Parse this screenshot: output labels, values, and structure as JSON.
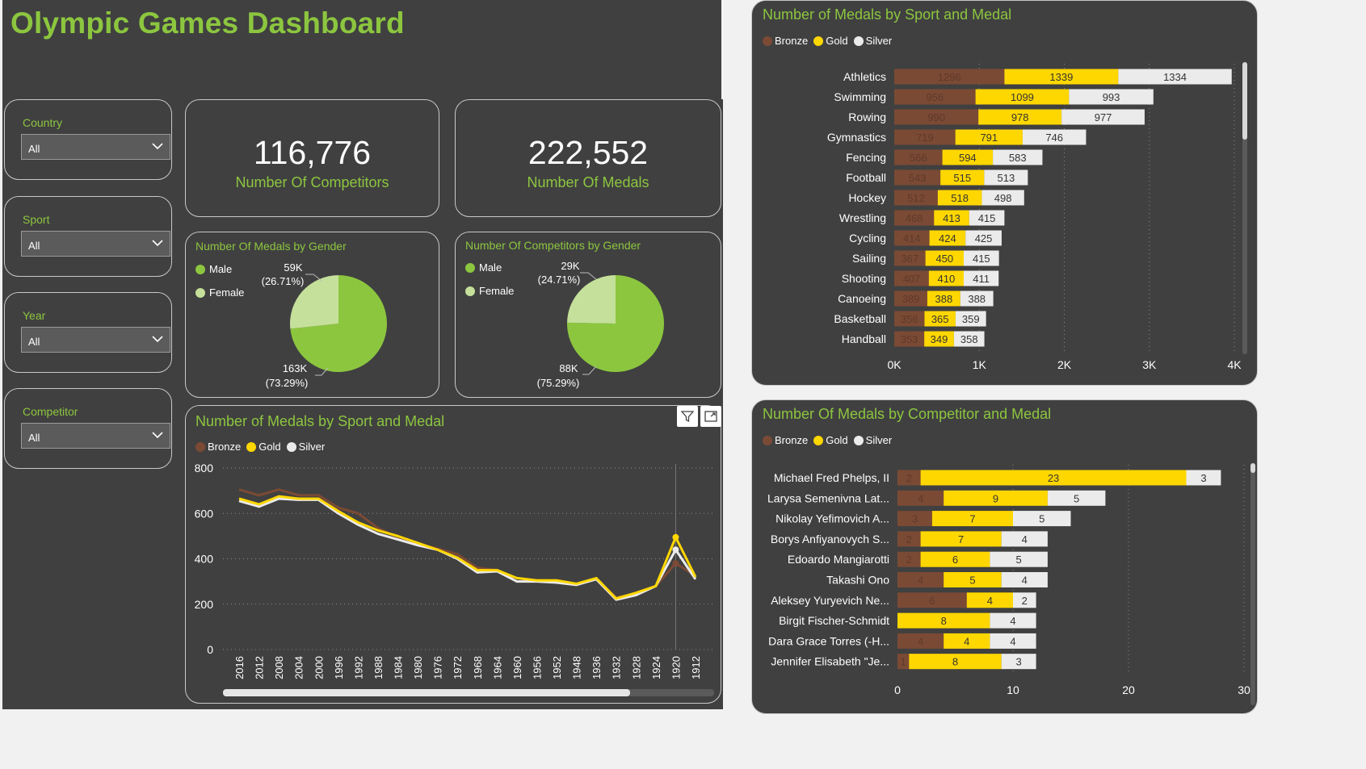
{
  "dashboard": {
    "title": "Olympic Games Dashboard"
  },
  "slicers": [
    {
      "label": "Country",
      "value": "All"
    },
    {
      "label": "Sport",
      "value": "All"
    },
    {
      "label": "Year",
      "value": "All"
    },
    {
      "label": "Competitor",
      "value": "All"
    }
  ],
  "kpis": {
    "competitors": {
      "value": "116,776",
      "label": "Number Of Competitors"
    },
    "medals": {
      "value": "222,552",
      "label": "Number Of Medals"
    }
  },
  "colors": {
    "bronze": "#7b4a34",
    "gold": "#ffd700",
    "silver": "#ebebeb",
    "male": "#8cc63f",
    "female": "#c5e09a",
    "accent": "#8cc63f",
    "panel": "#404040"
  },
  "legend_medals": [
    "Bronze",
    "Gold",
    "Silver"
  ],
  "pie_medals": {
    "title": "Number Of Medals by Gender",
    "legend": [
      "Male",
      "Female"
    ],
    "female": {
      "value": "59K",
      "pct": "(26.71%)",
      "share": 26.71
    },
    "male": {
      "value": "163K",
      "pct": "(73.29%)",
      "share": 73.29
    }
  },
  "pie_competitors": {
    "title": "Number Of Competitors by Gender",
    "legend": [
      "Male",
      "Female"
    ],
    "female": {
      "value": "29K",
      "pct": "(24.71%)",
      "share": 24.71
    },
    "male": {
      "value": "88K",
      "pct": "(75.29%)",
      "share": 75.29
    }
  },
  "chart_data": [
    {
      "type": "bar",
      "title": "Number of Medals by Sport and Medal",
      "stacked": true,
      "orientation": "horizontal",
      "categories": [
        "Athletics",
        "Swimming",
        "Rowing",
        "Gymnastics",
        "Fencing",
        "Football",
        "Hockey",
        "Wrestling",
        "Cycling",
        "Sailing",
        "Shooting",
        "Canoeing",
        "Basketball",
        "Handball"
      ],
      "series": [
        {
          "name": "Bronze",
          "values": [
            1296,
            956,
            990,
            719,
            566,
            543,
            512,
            468,
            414,
            367,
            407,
            389,
            356,
            353
          ]
        },
        {
          "name": "Gold",
          "values": [
            1339,
            1099,
            978,
            791,
            594,
            515,
            518,
            413,
            424,
            450,
            410,
            388,
            365,
            349
          ]
        },
        {
          "name": "Silver",
          "values": [
            1334,
            993,
            977,
            746,
            583,
            513,
            498,
            415,
            425,
            415,
            411,
            388,
            359,
            358
          ]
        }
      ],
      "xlim": [
        0,
        4000
      ],
      "xticks": [
        "0K",
        "1K",
        "2K",
        "3K",
        "4K"
      ],
      "legend": "top-left"
    },
    {
      "type": "bar",
      "title": "Number Of Medals by Competitor and Medal",
      "stacked": true,
      "orientation": "horizontal",
      "categories": [
        "Michael Fred Phelps, II",
        "Larysa Semenivna Lat...",
        "Nikolay Yefimovich A...",
        "Borys Anfiyanovych S...",
        "Edoardo Mangiarotti",
        "Takashi Ono",
        "Aleksey Yuryevich Ne...",
        "Birgit Fischer-Schmidt",
        "Dara Grace Torres (-H...",
        "Jennifer Elisabeth \"Je..."
      ],
      "series": [
        {
          "name": "Bronze",
          "values": [
            2,
            4,
            3,
            2,
            2,
            4,
            6,
            0,
            4,
            1
          ]
        },
        {
          "name": "Gold",
          "values": [
            23,
            9,
            7,
            7,
            6,
            5,
            4,
            8,
            4,
            8
          ]
        },
        {
          "name": "Silver",
          "values": [
            3,
            5,
            5,
            4,
            5,
            4,
            2,
            4,
            4,
            3
          ]
        }
      ],
      "xlim": [
        0,
        30
      ],
      "xticks": [
        "0",
        "10",
        "20",
        "30"
      ],
      "legend": "top-left"
    },
    {
      "type": "line",
      "title": "Number of Medals by Sport and Medal",
      "x": [
        "2016",
        "2012",
        "2008",
        "2004",
        "2000",
        "1996",
        "1992",
        "1988",
        "1984",
        "1980",
        "1976",
        "1972",
        "1968",
        "1964",
        "1960",
        "1956",
        "1952",
        "1948",
        "1936",
        "1932",
        "1928",
        "1924",
        "1920",
        "1912"
      ],
      "series": [
        {
          "name": "Bronze",
          "values": [
            705,
            680,
            705,
            680,
            680,
            625,
            600,
            535,
            495,
            465,
            445,
            420,
            360,
            350,
            315,
            305,
            305,
            290,
            310,
            230,
            245,
            280,
            380,
            325
          ]
        },
        {
          "name": "Gold",
          "values": [
            665,
            640,
            675,
            665,
            665,
            610,
            560,
            525,
            500,
            470,
            440,
            405,
            350,
            350,
            315,
            305,
            305,
            290,
            315,
            225,
            250,
            280,
            495,
            320
          ]
        },
        {
          "name": "Silver",
          "values": [
            655,
            630,
            665,
            660,
            660,
            600,
            550,
            510,
            485,
            460,
            440,
            400,
            340,
            345,
            300,
            300,
            295,
            285,
            310,
            220,
            240,
            280,
            440,
            310
          ]
        }
      ],
      "ylim": [
        0,
        800
      ],
      "yticks": [
        "0",
        "200",
        "400",
        "600",
        "800"
      ],
      "legend": "top-left"
    }
  ]
}
